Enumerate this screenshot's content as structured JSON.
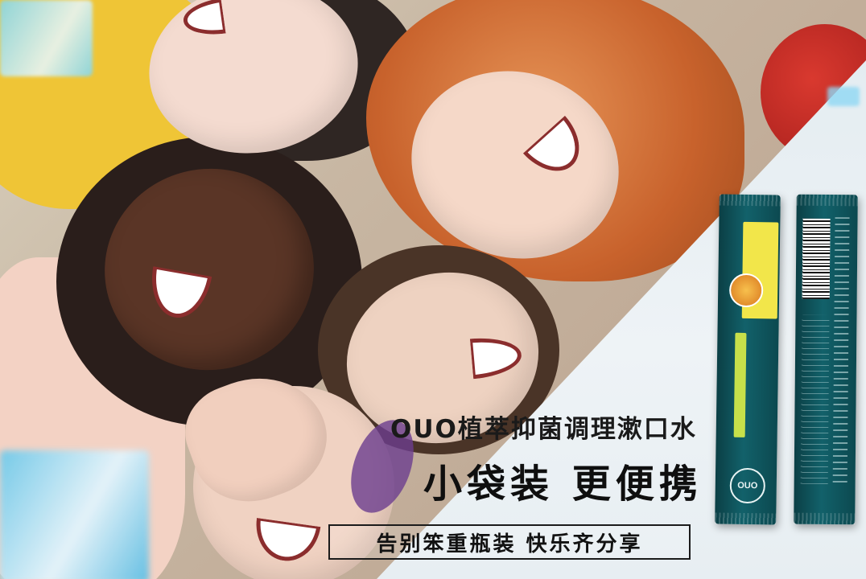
{
  "ad": {
    "headline": "OUO植萃抑菌调理漱口水",
    "subheadline": "小袋装 更便携",
    "tagline": "告别笨重瓶装   快乐齐分享"
  },
  "product": {
    "brand_logo": "OUO",
    "packaging": "sachet",
    "colors": {
      "sachet": "#0f5a62",
      "badge": "#f2e64a",
      "accent": "#c7e04a"
    }
  },
  "photo": {
    "subject": "five young people lying in a circle, laughing",
    "hair_colors": [
      "#2a1e1b",
      "#c8622c",
      "#4a3427"
    ]
  }
}
